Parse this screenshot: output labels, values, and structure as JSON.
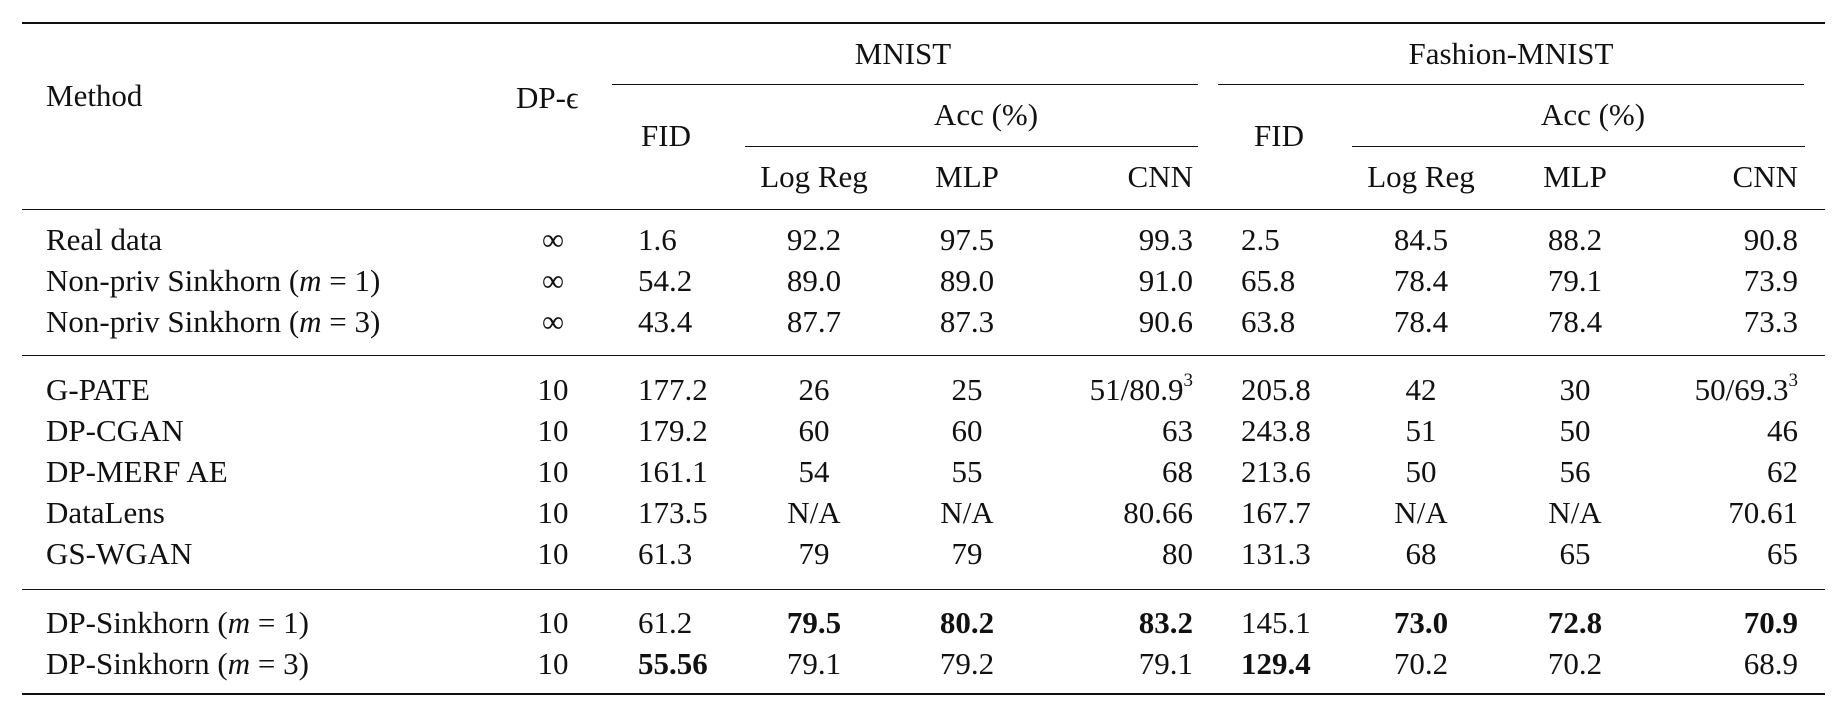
{
  "table": {
    "header": {
      "method": "Method",
      "dp_eps": "DP-ϵ",
      "mnist": "MNIST",
      "fashion": "Fashion-MNIST",
      "fid": "FID",
      "acc": "Acc (%)",
      "logreg": "Log Reg",
      "mlp": "MLP",
      "cnn": "CNN"
    },
    "rows": [
      {
        "method": "Real data",
        "method_suffix": "",
        "eps": "∞",
        "mnist_fid": "1.6",
        "mnist_logreg": "92.2",
        "mnist_mlp": "97.5",
        "mnist_cnn": "99.3",
        "fashion_fid": "2.5",
        "fashion_logreg": "84.5",
        "fashion_mlp": "88.2",
        "fashion_cnn": "90.8"
      },
      {
        "method": "Non-priv Sinkhorn (",
        "method_suffix": " = 1)",
        "eps": "∞",
        "mnist_fid": "54.2",
        "mnist_logreg": "89.0",
        "mnist_mlp": "89.0",
        "mnist_cnn": "91.0",
        "fashion_fid": "65.8",
        "fashion_logreg": "78.4",
        "fashion_mlp": "79.1",
        "fashion_cnn": "73.9"
      },
      {
        "method": "Non-priv Sinkhorn (",
        "method_suffix": " = 3)",
        "eps": "∞",
        "mnist_fid": "43.4",
        "mnist_logreg": "87.7",
        "mnist_mlp": "87.3",
        "mnist_cnn": "90.6",
        "fashion_fid": "63.8",
        "fashion_logreg": "78.4",
        "fashion_mlp": "78.4",
        "fashion_cnn": "73.3"
      },
      {
        "method": "G-PATE",
        "method_suffix": "",
        "eps": "10",
        "mnist_fid": "177.2",
        "mnist_logreg": "26",
        "mnist_mlp": "25",
        "mnist_cnn": "51/80.9",
        "fashion_fid": "205.8",
        "fashion_logreg": "42",
        "fashion_mlp": "30",
        "fashion_cnn": "50/69.3"
      },
      {
        "method": "DP-CGAN",
        "method_suffix": "",
        "eps": "10",
        "mnist_fid": "179.2",
        "mnist_logreg": "60",
        "mnist_mlp": "60",
        "mnist_cnn": "63",
        "fashion_fid": "243.8",
        "fashion_logreg": "51",
        "fashion_mlp": "50",
        "fashion_cnn": "46"
      },
      {
        "method": "DP-MERF AE",
        "method_suffix": "",
        "eps": "10",
        "mnist_fid": "161.1",
        "mnist_logreg": "54",
        "mnist_mlp": "55",
        "mnist_cnn": "68",
        "fashion_fid": "213.6",
        "fashion_logreg": "50",
        "fashion_mlp": "56",
        "fashion_cnn": "62"
      },
      {
        "method": "DataLens",
        "method_suffix": "",
        "eps": "10",
        "mnist_fid": "173.5",
        "mnist_logreg": "N/A",
        "mnist_mlp": "N/A",
        "mnist_cnn": "80.66",
        "fashion_fid": "167.7",
        "fashion_logreg": "N/A",
        "fashion_mlp": "N/A",
        "fashion_cnn": "70.61"
      },
      {
        "method": "GS-WGAN",
        "method_suffix": "",
        "eps": "10",
        "mnist_fid": "61.3",
        "mnist_logreg": "79",
        "mnist_mlp": "79",
        "mnist_cnn": "80",
        "fashion_fid": "131.3",
        "fashion_logreg": "68",
        "fashion_mlp": "65",
        "fashion_cnn": "65"
      },
      {
        "method": "DP-Sinkhorn (",
        "method_suffix": " = 1)",
        "eps": "10",
        "mnist_fid": "61.2",
        "mnist_logreg": "79.5",
        "mnist_mlp": "80.2",
        "mnist_cnn": "83.2",
        "fashion_fid": "145.1",
        "fashion_logreg": "73.0",
        "fashion_mlp": "72.8",
        "fashion_cnn": "70.9"
      },
      {
        "method": "DP-Sinkhorn (",
        "method_suffix": " = 3)",
        "eps": "10",
        "mnist_fid": "55.56",
        "mnist_logreg": "79.1",
        "mnist_mlp": "79.2",
        "mnist_cnn": "79.1",
        "fashion_fid": "129.4",
        "fashion_logreg": "70.2",
        "fashion_mlp": "70.2",
        "fashion_cnn": "68.9"
      }
    ],
    "math_var": "m",
    "footnote_mark": "3"
  }
}
